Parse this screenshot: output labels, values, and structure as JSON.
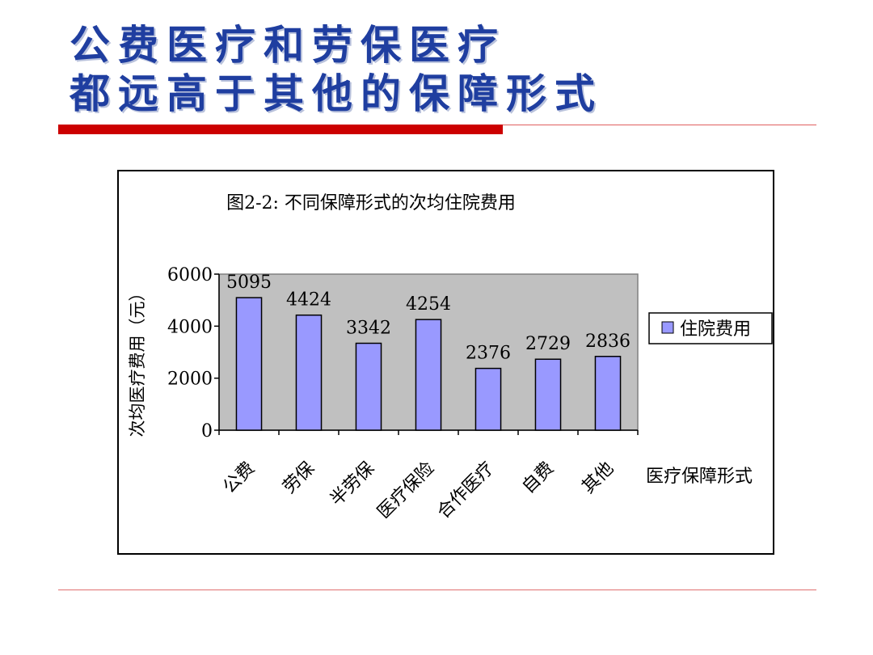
{
  "slide": {
    "title_line1": "公费医疗和劳保医疗",
    "title_line2": "都远高于其他的保障形式"
  },
  "colors": {
    "title": "#1f3ea0",
    "accent_rule": "#cc0000",
    "bar_fill": "#9999ff",
    "plot_bg": "#c0c0c0"
  },
  "chart_data": {
    "type": "bar",
    "title": "图2-2: 不同保障形式的次均住院费用",
    "xlabel": "医疗保障形式",
    "ylabel": "次均医疗费用（元）",
    "categories": [
      "公费",
      "劳保",
      "半劳保",
      "医疗保险",
      "合作医疗",
      "自费",
      "其他"
    ],
    "series": [
      {
        "name": "住院费用",
        "values": [
          5095,
          4424,
          3342,
          4254,
          2376,
          2729,
          2836
        ]
      }
    ],
    "yticks": [
      "0",
      "2000",
      "4000",
      "6000"
    ],
    "ylim": [
      0,
      6000
    ],
    "data_labels": [
      "5095",
      "4424",
      "3342",
      "4254",
      "2376",
      "2729",
      "2836"
    ],
    "legend_position": "right",
    "grid": false
  }
}
